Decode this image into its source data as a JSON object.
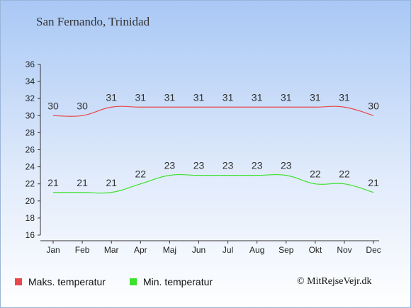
{
  "page": {
    "title": "San Fernando, Trinidad",
    "credit": "© MitRejseVejr.dk"
  },
  "legend": {
    "max_label": "Maks. temperatur",
    "min_label": "Min. temperatur"
  },
  "colors": {
    "max": "#e8474b",
    "min": "#3de12c"
  },
  "chart_data": {
    "type": "line",
    "categories": [
      "Jan",
      "Feb",
      "Mar",
      "Apr",
      "Maj",
      "Jun",
      "Jul",
      "Aug",
      "Sep",
      "Okt",
      "Nov",
      "Dec"
    ],
    "yticks": [
      16,
      18,
      20,
      22,
      24,
      26,
      28,
      30,
      32,
      34,
      36
    ],
    "ylim": [
      16,
      36
    ],
    "grid": false,
    "legend_position": "bottom",
    "series": [
      {
        "name": "Maks. temperatur",
        "values": [
          30,
          30,
          31,
          31,
          31,
          31,
          31,
          31,
          31,
          31,
          31,
          30
        ]
      },
      {
        "name": "Min. temperatur",
        "values": [
          21,
          21,
          21,
          22,
          23,
          23,
          23,
          23,
          23,
          22,
          22,
          21
        ]
      }
    ]
  }
}
